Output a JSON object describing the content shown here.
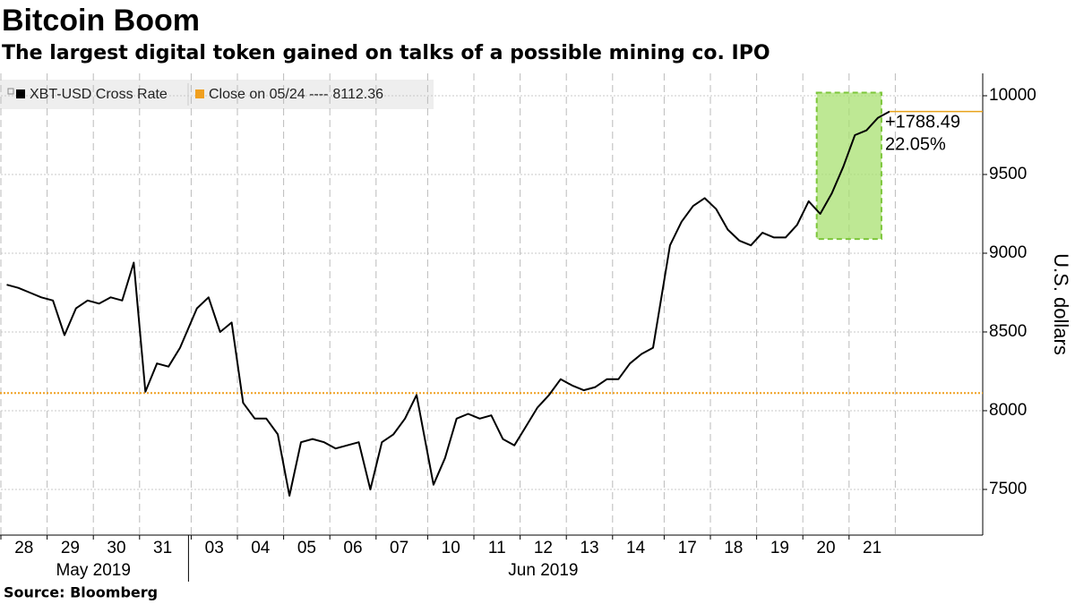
{
  "chart_data": {
    "type": "line",
    "title": "Bitcoin Boom",
    "subtitle": "The largest digital token gained on talks of a possible mining co. IPO",
    "y_label": "U.S. dollars",
    "source": "Source: Bloomberg",
    "groups": [
      {
        "label": "May 2019",
        "categories": [
          "28",
          "29",
          "30",
          "31"
        ]
      },
      {
        "label": "Jun 2019",
        "categories": [
          "03",
          "04",
          "05",
          "06",
          "07",
          "10",
          "11",
          "12",
          "13",
          "14",
          "17",
          "18",
          "19",
          "20",
          "21"
        ]
      }
    ],
    "series": [
      {
        "name": "XBT-USD Cross Rate",
        "color": "#000000",
        "values": [
          8800,
          8780,
          8750,
          8720,
          8700,
          8480,
          8650,
          8700,
          8680,
          8720,
          8700,
          8940,
          8120,
          8300,
          8280,
          8400,
          8650,
          8720,
          8500,
          8560,
          8050,
          7950,
          7950,
          7850,
          7460,
          7800,
          7820,
          7800,
          7760,
          7780,
          7800,
          7500,
          7800,
          7850,
          7950,
          8100,
          7530,
          7700,
          7950,
          7980,
          7950,
          7970,
          7820,
          7780,
          7900,
          8020,
          8100,
          8200,
          8160,
          8130,
          8150,
          8200,
          8200,
          8300,
          8360,
          8400,
          9050,
          9200,
          9300,
          9350,
          9280,
          9150,
          9080,
          9050,
          9130,
          9100,
          9100,
          9180,
          9330,
          9250,
          9380,
          9550,
          9750,
          9780,
          9860,
          9900
        ]
      }
    ],
    "reference": {
      "name": "Close on 05/24 ----",
      "value": 8112.36,
      "color": "#f0a020"
    },
    "annotation": {
      "labels": [
        "+1788.49",
        "22.05%"
      ],
      "color": "#e8a21a",
      "box": {
        "ylim": [
          9090,
          10020
        ],
        "color": "#a8e070",
        "border": "#7cc63a"
      }
    },
    "ylim": [
      7210,
      10142
    ],
    "yticks": [
      7500,
      8000,
      8500,
      9000,
      9500,
      10000
    ],
    "grid": true
  }
}
